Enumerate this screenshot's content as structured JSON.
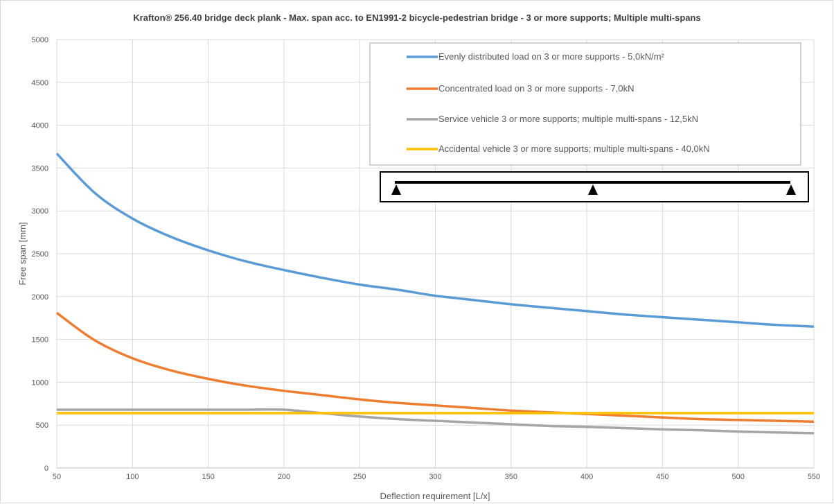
{
  "chart_data": {
    "type": "line",
    "title": "Krafton® 256.40 bridge deck plank  - Max. span acc. to EN1991-2 bicycle-pedestrian bridge - 3 or more supports; Multiple multi-spans",
    "xlabel": "Deflection requirement [L/x]",
    "ylabel": "Free span [mm]",
    "xlim": [
      50,
      550
    ],
    "ylim": [
      0,
      5000
    ],
    "x_ticks": [
      "50",
      "100",
      "150",
      "200",
      "250",
      "300",
      "350",
      "400",
      "450",
      "500",
      "550"
    ],
    "y_ticks": [
      "0",
      "500",
      "1000",
      "1500",
      "2000",
      "2500",
      "3000",
      "3500",
      "4000",
      "4500",
      "5000"
    ],
    "grid": true,
    "legend_position": "top-right",
    "x": [
      50,
      75,
      100,
      125,
      150,
      175,
      200,
      225,
      250,
      275,
      300,
      325,
      350,
      375,
      400,
      425,
      450,
      475,
      500,
      525,
      550
    ],
    "series": [
      {
        "name": "Evenly distributed load on 3 or more supports - 5,0kN/m²",
        "color": "#5B9BD5",
        "values": [
          3670,
          3210,
          2910,
          2700,
          2540,
          2410,
          2310,
          2220,
          2140,
          2080,
          2010,
          1960,
          1910,
          1870,
          1830,
          1790,
          1760,
          1730,
          1700,
          1670,
          1650
        ]
      },
      {
        "name": "Concentrated load on 3 or more supports - 7,0kN",
        "color": "#ED7D31",
        "values": [
          1810,
          1490,
          1280,
          1140,
          1040,
          960,
          900,
          850,
          800,
          760,
          730,
          700,
          670,
          650,
          630,
          610,
          590,
          570,
          560,
          550,
          540
        ]
      },
      {
        "name": "Service vehicle 3 or more supports; multiple multi-spans - 12,5kN",
        "color": "#A5A5A5",
        "values": [
          680,
          680,
          680,
          680,
          680,
          680,
          680,
          640,
          600,
          570,
          550,
          530,
          510,
          490,
          480,
          465,
          450,
          440,
          425,
          415,
          405
        ]
      },
      {
        "name": "Accidental vehicle 3 or more supports; multiple multi-spans - 40,0kN",
        "color": "#FFC000",
        "values": [
          640,
          640,
          640,
          640,
          640,
          640,
          640,
          640,
          640,
          640,
          640,
          640,
          640,
          640,
          640,
          640,
          640,
          640,
          640,
          640,
          640
        ]
      }
    ]
  }
}
